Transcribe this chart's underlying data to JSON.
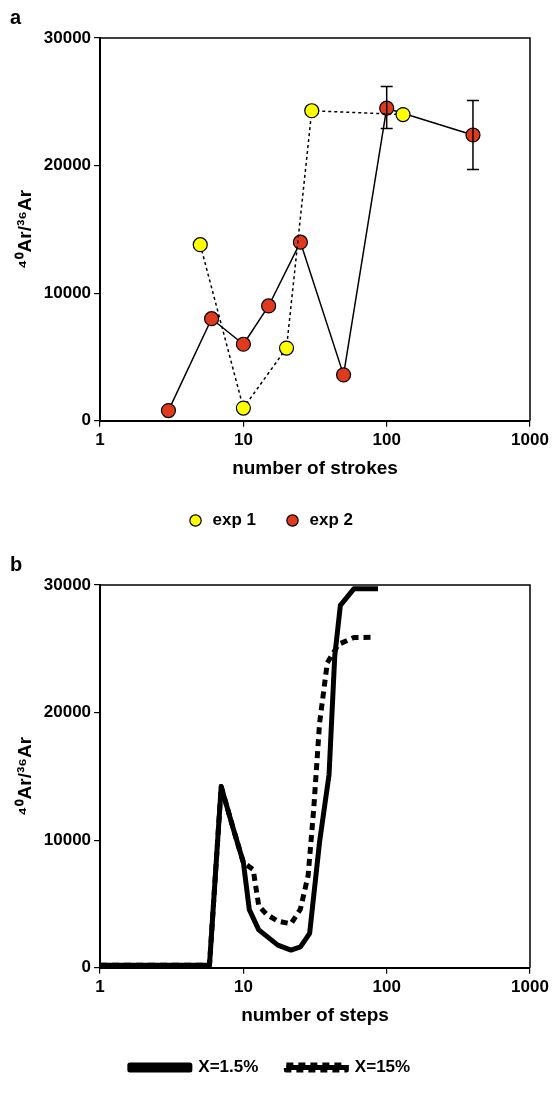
{
  "chart_data": [
    {
      "type": "line",
      "title": "a",
      "xlabel": "number of strokes",
      "ylabel": "⁴⁰Ar/³⁶Ar",
      "log": "x",
      "xlim": [
        1,
        1000
      ],
      "xticks": [
        1,
        10,
        100,
        1000
      ],
      "ylim": [
        0,
        30000
      ],
      "yticks": [
        0,
        10000,
        20000,
        30000
      ],
      "grid": false,
      "legend": "bottom",
      "marker": "circle",
      "series": [
        {
          "name": "exp 1",
          "color": "#ffff00",
          "line_style": "dotted",
          "x": [
            5,
            10,
            20,
            30,
            130
          ],
          "values": [
            13800,
            1000,
            5700,
            24300,
            24000
          ]
        },
        {
          "name": "exp 2",
          "color": "#e03a1e",
          "line_style": "solid",
          "x": [
            3,
            6,
            10,
            15,
            25,
            50,
            100,
            400
          ],
          "values": [
            800,
            8000,
            6000,
            9000,
            14000,
            3600,
            24500,
            22400
          ],
          "errors": [
            null,
            null,
            null,
            null,
            null,
            null,
            [
              22900,
              26200
            ],
            [
              19700,
              25100
            ]
          ]
        }
      ]
    },
    {
      "type": "line",
      "title": "b",
      "xlabel": "number of steps",
      "ylabel": "⁴⁰Ar/³⁶Ar",
      "log": "x",
      "xlim": [
        1,
        1000
      ],
      "xticks": [
        1,
        10,
        100,
        1000
      ],
      "ylim": [
        0,
        30000
      ],
      "yticks": [
        0,
        10000,
        20000,
        30000
      ],
      "grid": false,
      "legend": "bottom",
      "marker": "none",
      "series": [
        {
          "name": "X=1.5%",
          "color": "#000000",
          "line_style": "solid",
          "x": [
            1,
            5.8,
            7,
            8.5,
            10,
            11,
            12.8,
            17.4,
            21.5,
            25,
            29,
            34,
            39.6,
            43.4,
            47.5,
            59,
            87
          ],
          "values": [
            200,
            200,
            14200,
            10900,
            8250,
            4560,
            2970,
            1780,
            1390,
            1640,
            2700,
            9850,
            15130,
            24420,
            28400,
            29700,
            29700
          ]
        },
        {
          "name": "X=15%",
          "color": "#000000",
          "line_style": "dashed",
          "x": [
            1,
            5.8,
            7,
            8.5,
            10,
            11.7,
            12.8,
            14.5,
            17.4,
            21.5,
            25,
            28.3,
            31,
            34,
            38.5,
            46,
            59,
            82
          ],
          "values": [
            200,
            200,
            14200,
            10900,
            8250,
            7700,
            4860,
            4190,
            3660,
            3450,
            4600,
            7230,
            12540,
            19150,
            23900,
            25340,
            25880,
            25900
          ]
        }
      ]
    }
  ]
}
